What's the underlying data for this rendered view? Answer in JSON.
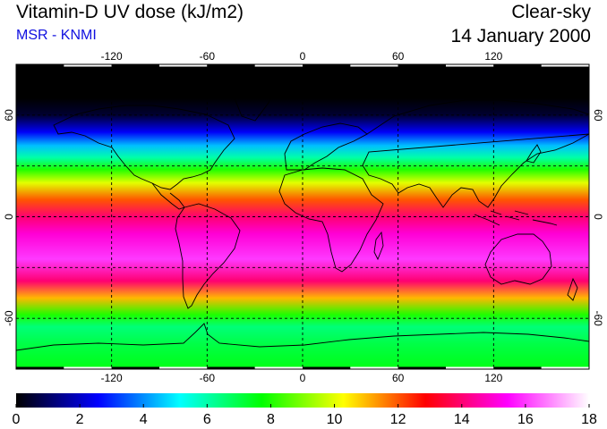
{
  "header": {
    "title": "Vitamin-D UV dose (kJ/m2)",
    "subtitle": "MSR - KNMI",
    "condition": "Clear-sky",
    "date": "14 January 2000"
  },
  "map": {
    "projection": "equirectangular",
    "lon_range": [
      -180,
      180
    ],
    "lat_range": [
      -90,
      90
    ],
    "lon_ticks": [
      "-120",
      "-60",
      "0",
      "60",
      "120"
    ],
    "lon_tick_values": [
      -120,
      -60,
      0,
      60,
      120
    ],
    "lat_ticks": [
      "60",
      "0",
      "-60"
    ],
    "lat_tick_values": [
      60,
      0,
      -60
    ],
    "gridlines": "dashed",
    "gridline_lats": [
      60,
      30,
      0,
      -30,
      -60
    ],
    "gridline_lons": [
      -120,
      -60,
      0,
      60,
      120
    ],
    "coastlines": true
  },
  "colorbar": {
    "min": 0,
    "max": 18,
    "labels": [
      "0",
      "2",
      "4",
      "6",
      "8",
      "10",
      "12",
      "14",
      "16",
      "18"
    ],
    "colors": [
      "#000000",
      "#0000ff",
      "#00ffff",
      "#00ff00",
      "#ffff00",
      "#ff0000",
      "#ff00ff",
      "#ffffff"
    ]
  },
  "field_profile": [
    {
      "lat": 90,
      "value": 0
    },
    {
      "lat": 70,
      "value": 0
    },
    {
      "lat": 60,
      "value": 0.5
    },
    {
      "lat": 50,
      "value": 2.5
    },
    {
      "lat": 42,
      "value": 4.5
    },
    {
      "lat": 35,
      "value": 6
    },
    {
      "lat": 28,
      "value": 8
    },
    {
      "lat": 20,
      "value": 10
    },
    {
      "lat": 10,
      "value": 12
    },
    {
      "lat": 0,
      "value": 14
    },
    {
      "lat": -10,
      "value": 15
    },
    {
      "lat": -25,
      "value": 16
    },
    {
      "lat": -38,
      "value": 14
    },
    {
      "lat": -48,
      "value": 11
    },
    {
      "lat": -58,
      "value": 8
    },
    {
      "lat": -65,
      "value": 6.5
    },
    {
      "lat": -75,
      "value": 7
    },
    {
      "lat": -90,
      "value": 7.5
    }
  ]
}
